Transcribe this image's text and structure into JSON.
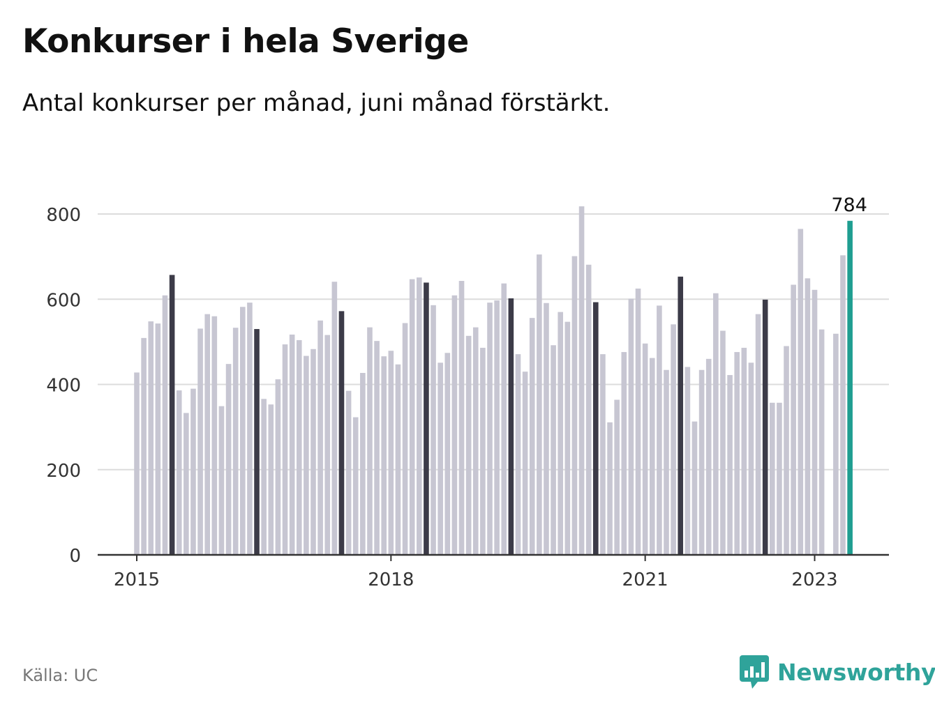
{
  "header": {
    "title": "Konkurser i hela Sverige",
    "subtitle": "Antal konkurser per månad, juni månad förstärkt."
  },
  "footer": {
    "source": "Källa: UC",
    "brand": "Newsworthy"
  },
  "colors": {
    "bar_default": "#c7c6d2",
    "bar_june": "#3c3b48",
    "bar_latest": "#1f9e91",
    "grid": "#dcdcdc",
    "axis": "#333333",
    "brand": "#2fa39a"
  },
  "icons": [
    "newsworthy-logo-icon"
  ],
  "chart_data": {
    "type": "bar",
    "title": "Konkurser i hela Sverige",
    "subtitle": "Antal konkurser per månad, juni månad förstärkt.",
    "xlabel": "",
    "ylabel": "",
    "ylim": [
      0,
      800
    ],
    "yticks": [
      0,
      200,
      400,
      600,
      800
    ],
    "x_tick_labels": [
      {
        "label": "2015",
        "date": "2015-01"
      },
      {
        "label": "2018",
        "date": "2018-01"
      },
      {
        "label": "2021",
        "date": "2021-01"
      },
      {
        "label": "2023",
        "date": "2023-01"
      }
    ],
    "grid": true,
    "highlight_month": "06",
    "annotation": {
      "date": "2023-06",
      "label": "784"
    },
    "months": [
      "2015-01",
      "2015-02",
      "2015-03",
      "2015-04",
      "2015-05",
      "2015-06",
      "2015-07",
      "2015-08",
      "2015-09",
      "2015-10",
      "2015-11",
      "2015-12",
      "2016-01",
      "2016-02",
      "2016-03",
      "2016-04",
      "2016-05",
      "2016-06",
      "2016-07",
      "2016-08",
      "2016-09",
      "2016-10",
      "2016-11",
      "2016-12",
      "2017-01",
      "2017-02",
      "2017-03",
      "2017-04",
      "2017-05",
      "2017-06",
      "2017-07",
      "2017-08",
      "2017-09",
      "2017-10",
      "2017-11",
      "2017-12",
      "2018-01",
      "2018-02",
      "2018-03",
      "2018-04",
      "2018-05",
      "2018-06",
      "2018-07",
      "2018-08",
      "2018-09",
      "2018-10",
      "2018-11",
      "2018-12",
      "2019-01",
      "2019-02",
      "2019-03",
      "2019-04",
      "2019-05",
      "2019-06",
      "2019-07",
      "2019-08",
      "2019-09",
      "2019-10",
      "2019-11",
      "2019-12",
      "2020-01",
      "2020-02",
      "2020-03",
      "2020-04",
      "2020-05",
      "2020-06",
      "2020-07",
      "2020-08",
      "2020-09",
      "2020-10",
      "2020-11",
      "2020-12",
      "2021-01",
      "2021-02",
      "2021-03",
      "2021-04",
      "2021-05",
      "2021-06",
      "2021-07",
      "2021-08",
      "2021-09",
      "2021-10",
      "2021-11",
      "2021-12",
      "2022-01",
      "2022-02",
      "2022-03",
      "2022-04",
      "2022-05",
      "2022-06",
      "2022-07",
      "2022-08",
      "2022-09",
      "2022-10",
      "2022-11",
      "2022-12",
      "2023-01",
      "2023-02",
      "2023-03",
      "2023-04",
      "2023-05",
      "2023-06"
    ],
    "values": [
      428,
      509,
      548,
      543,
      609,
      657,
      386,
      333,
      390,
      531,
      565,
      560,
      349,
      448,
      533,
      582,
      592,
      530,
      366,
      353,
      412,
      494,
      517,
      504,
      467,
      483,
      550,
      516,
      641,
      572,
      385,
      323,
      427,
      534,
      502,
      466,
      479,
      447,
      544,
      647,
      651,
      639,
      586,
      451,
      474,
      609,
      643,
      514,
      534,
      486,
      592,
      597,
      637,
      602,
      471,
      430,
      556,
      705,
      591,
      492,
      570,
      547,
      701,
      818,
      681,
      593,
      471,
      311,
      364,
      476,
      601,
      625,
      496,
      462,
      585,
      434,
      541,
      653,
      441,
      313,
      434,
      460,
      614,
      526,
      422,
      476,
      486,
      451,
      565,
      599,
      357,
      357,
      490,
      634,
      765,
      649,
      622,
      529,
      null,
      519,
      703,
      784
    ]
  }
}
